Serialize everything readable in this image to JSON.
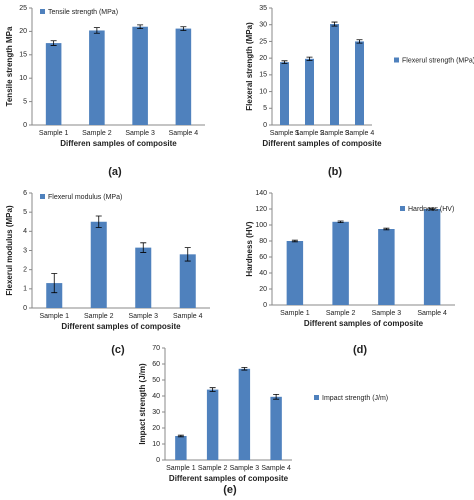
{
  "chart_data": [
    {
      "type": "bar",
      "panel_label": "(a)",
      "y_label": "Tensile strength MPa",
      "x_label": "Differen samples of composite",
      "categories": [
        "Sample 1",
        "Sample 2",
        "Sample 3",
        "Sample 4"
      ],
      "series": [
        {
          "name": "Tensile strength (MPa)",
          "color": "#4f81bd",
          "values": [
            17.5,
            20.2,
            21.0,
            20.6
          ],
          "errors": [
            0.5,
            0.6,
            0.4,
            0.4
          ]
        }
      ],
      "ylim": [
        0,
        25
      ],
      "yticks": [
        0,
        5,
        10,
        15,
        20,
        25
      ],
      "legend": "top-left"
    },
    {
      "type": "bar",
      "panel_label": "(b)",
      "y_label": "Flexeral strength (MPa)",
      "x_label": "Different samples of composite",
      "categories": [
        "Sample 1",
        "Sample 2",
        "Sample 3",
        "Sample 4"
      ],
      "series": [
        {
          "name": "Flexerul strength (MPa)",
          "color": "#4f81bd",
          "values": [
            18.8,
            19.8,
            30.2,
            25.0
          ],
          "errors": [
            0.4,
            0.5,
            0.6,
            0.5
          ]
        }
      ],
      "ylim": [
        0,
        35
      ],
      "yticks": [
        0,
        5,
        10,
        15,
        20,
        25,
        30,
        35
      ],
      "legend": "right"
    },
    {
      "type": "bar",
      "panel_label": "(c)",
      "y_label": "Flexerul modulus (MPa)",
      "x_label": "Different samples of composite",
      "categories": [
        "Sample 1",
        "Sample 2",
        "Sample 3",
        "Sample 4"
      ],
      "series": [
        {
          "name": "Flexerul modulus (MPa)",
          "color": "#4f81bd",
          "values": [
            1.3,
            4.5,
            3.15,
            2.8
          ],
          "errors": [
            0.5,
            0.3,
            0.25,
            0.35
          ]
        }
      ],
      "ylim": [
        0,
        6
      ],
      "yticks": [
        0,
        1,
        2,
        3,
        4,
        5,
        6
      ],
      "legend": "top-left"
    },
    {
      "type": "bar",
      "panel_label": "(d)",
      "y_label": "Hardness (HV)",
      "x_label": "Different samples of composite",
      "categories": [
        "Sample 1",
        "Sample 2",
        "Sample 3",
        "Sample 4"
      ],
      "series": [
        {
          "name": "Hardness (HV)",
          "color": "#4f81bd",
          "values": [
            80,
            104,
            95,
            120
          ],
          "errors": [
            1,
            1,
            1,
            1
          ]
        }
      ],
      "ylim": [
        0,
        140
      ],
      "yticks": [
        0,
        20,
        40,
        60,
        80,
        100,
        120,
        140
      ],
      "legend": "top-right"
    },
    {
      "type": "bar",
      "panel_label": "(e)",
      "y_label": "Impact strength (J/m)",
      "x_label": "Different samples of composite",
      "categories": [
        "Sample 1",
        "Sample 2",
        "Sample 3",
        "Sample 4"
      ],
      "series": [
        {
          "name": "Impact strength (J/m)",
          "color": "#4f81bd",
          "values": [
            15,
            44,
            57,
            39.5
          ],
          "errors": [
            0.5,
            1.2,
            0.8,
            1.5
          ]
        }
      ],
      "ylim": [
        0,
        70
      ],
      "yticks": [
        0,
        10,
        20,
        30,
        40,
        50,
        60,
        70
      ],
      "legend": "right"
    }
  ]
}
